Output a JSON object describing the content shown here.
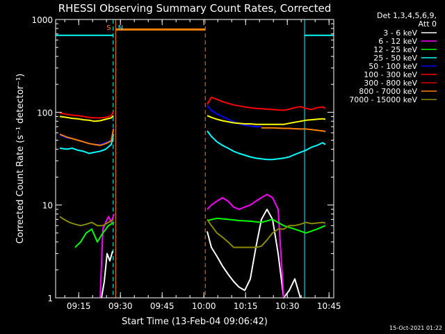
{
  "colors": {
    "background": "#000000",
    "foreground": "#ffffff",
    "attenuator_bar": "#ff7f00",
    "night_bar": "#00ffff"
  },
  "chart_data": {
    "type": "line",
    "title": "RHESSI Observing Summary Count Rates, Corrected",
    "xlabel": "Start Time (13-Feb-04 09:06:42)",
    "ylabel": "Corrected Count Rate (s⁻¹ detector⁻¹)",
    "x_unit": "minutes after 09:06:42",
    "xlim": [
      0,
      100
    ],
    "ylim": [
      1,
      1000
    ],
    "y_scale": "log",
    "x_ticks": [
      {
        "x": 8.3,
        "label": "09:15"
      },
      {
        "x": 23.3,
        "label": "09:30"
      },
      {
        "x": 38.3,
        "label": "09:45"
      },
      {
        "x": 53.3,
        "label": "10:00"
      },
      {
        "x": 68.3,
        "label": "10:15"
      },
      {
        "x": 83.3,
        "label": "10:30"
      },
      {
        "x": 98.3,
        "label": "10:45"
      }
    ],
    "y_ticks": [
      {
        "y": 1,
        "label": "1"
      },
      {
        "y": 10,
        "label": "10"
      },
      {
        "y": 100,
        "label": "100"
      },
      {
        "y": 1000,
        "label": "1000"
      }
    ],
    "legend_header": [
      "Det 1,3,4,5,6,9,",
      "Att 0"
    ],
    "legend_placement": "right",
    "grid": false,
    "series": [
      {
        "name": "3 - 6 keV",
        "color": "#ffffff",
        "segments": [
          {
            "x": [
              16.5,
              17.5,
              18.5,
              19.5,
              20.5
            ],
            "y": [
              1,
              1.5,
              3,
              2.5,
              3.2
            ]
          },
          {
            "x": [
              54.5,
              56,
              58,
              60,
              62,
              64,
              66,
              68,
              70,
              72,
              74,
              76,
              78,
              80,
              82,
              84,
              86,
              88
            ],
            "y": [
              5.2,
              3.5,
              2.8,
              2.2,
              1.8,
              1.5,
              1.3,
              1.2,
              1.6,
              3.5,
              7,
              9,
              7,
              3,
              1,
              1.2,
              1.6,
              1
            ]
          }
        ]
      },
      {
        "name": "6 - 12 keV",
        "color": "#ff00ff",
        "segments": [
          {
            "x": [
              16,
              17,
              18,
              19,
              20,
              21
            ],
            "y": [
              1,
              5.5,
              6.5,
              7.5,
              6.5,
              8
            ]
          },
          {
            "x": [
              54.5,
              56,
              58,
              60,
              62,
              64,
              66,
              68,
              70,
              72,
              74,
              76,
              78,
              80,
              82
            ],
            "y": [
              9,
              10,
              11,
              12,
              11,
              9.5,
              9,
              9.5,
              10,
              11,
              12,
              13,
              12,
              9,
              1
            ]
          }
        ]
      },
      {
        "name": "12 - 25 keV",
        "color": "#00ff00",
        "segments": [
          {
            "x": [
              7,
              9,
              11,
              13,
              15,
              17,
              19,
              21
            ],
            "y": [
              3.5,
              4,
              5,
              5.5,
              4,
              5,
              6,
              6.5
            ]
          },
          {
            "x": [
              54.5,
              58,
              62,
              66,
              70,
              74,
              78,
              82,
              86,
              90,
              94,
              97
            ],
            "y": [
              6.8,
              7.2,
              7,
              6.8,
              6.7,
              6.5,
              7,
              6,
              5.5,
              5,
              5.5,
              6
            ]
          }
        ]
      },
      {
        "name": "25 - 50 keV",
        "color": "#00ffff",
        "segments": [
          {
            "x": [
              1.5,
              4,
              6,
              8,
              10,
              12,
              14,
              16,
              18,
              20,
              20.8
            ],
            "y": [
              41,
              40,
              41,
              39,
              38,
              36,
              37,
              38,
              40,
              45,
              58
            ]
          },
          {
            "x": [
              54.5,
              56,
              58,
              60,
              62,
              64,
              66,
              68,
              70,
              72,
              74,
              76,
              78,
              80,
              82,
              84,
              86,
              88,
              90,
              92,
              94,
              96,
              97
            ],
            "y": [
              63,
              55,
              48,
              44,
              41,
              38,
              36,
              34.5,
              33,
              32,
              31.5,
              31,
              31,
              31.5,
              32,
              33,
              35,
              37,
              39,
              42,
              44,
              47,
              45
            ]
          }
        ]
      },
      {
        "name": "50 - 100 keV",
        "color": "#0000ff",
        "segments": [
          {
            "x": [
              1.5,
              4,
              6,
              8,
              10,
              12,
              14,
              16,
              18,
              20,
              20.8
            ],
            "y": [
              57,
              53,
              52,
              50,
              48,
              46,
              45,
              45,
              47,
              50,
              68
            ]
          },
          {
            "x": [
              54.5,
              56,
              58,
              60,
              62,
              64,
              66,
              68,
              70,
              72,
              74
            ],
            "y": [
              118,
              105,
              96,
              90,
              84,
              79,
              75,
              73,
              71,
              70,
              70
            ]
          }
        ]
      },
      {
        "name": "100 - 300 keV",
        "color": "#ff0000",
        "segments": [
          {
            "x": [
              1.5,
              4,
              6,
              8,
              10,
              12,
              14,
              16,
              18,
              20,
              20.8
            ],
            "y": [
              98,
              95,
              93,
              92,
              90,
              88,
              87,
              87,
              88,
              92,
              102
            ]
          },
          {
            "x": [
              54.5,
              56,
              58,
              60,
              62,
              64,
              66,
              68,
              70,
              72,
              74,
              76,
              78,
              80,
              82,
              84,
              86,
              88,
              90,
              92,
              94,
              96,
              97
            ],
            "y": [
              122,
              145,
              138,
              130,
              125,
              120,
              117,
              114,
              112,
              110,
              109,
              108,
              107,
              106,
              105,
              108,
              112,
              115,
              110,
              107,
              112,
              114,
              110
            ]
          }
        ]
      },
      {
        "name": "300 - 800 keV",
        "color": "#dd0000",
        "segments": []
      },
      {
        "name": "800 - 7000 keV",
        "color": "#ff7f00",
        "segments": [
          {
            "x": [
              1.5,
              4,
              6,
              8,
              10,
              12,
              14,
              16,
              18,
              20,
              20.8
            ],
            "y": [
              58,
              54,
              52,
              50,
              48,
              46,
              45,
              44,
              46,
              49,
              66
            ]
          },
          {
            "x": [
              74,
              76,
              78,
              80,
              82,
              84,
              86,
              88,
              90,
              92,
              94,
              96,
              97
            ],
            "y": [
              68,
              68,
              68,
              67.5,
              67,
              67,
              66.5,
              66,
              66,
              65,
              64,
              63,
              62
            ]
          }
        ]
      },
      {
        "name": "7000 - 15000 keV",
        "color": "#8b8b00",
        "segments": [
          {
            "x": [
              1.5,
              3,
              5,
              7,
              9,
              11,
              13,
              15,
              17,
              19,
              20.8
            ],
            "y": [
              7.5,
              7,
              6.5,
              6.2,
              6,
              6.2,
              6.5,
              6,
              6,
              6.5,
              7
            ]
          },
          {
            "x": [
              54.5,
              56,
              58,
              60,
              62,
              64,
              66,
              68,
              70,
              72,
              74,
              76,
              78,
              80,
              82,
              84,
              86,
              88,
              90,
              92,
              94,
              96,
              97
            ],
            "y": [
              7,
              6,
              5,
              4.5,
              4,
              3.5,
              3.5,
              3.5,
              3.5,
              3.5,
              3.6,
              4.2,
              5,
              5.5,
              5.5,
              6,
              6,
              6.2,
              6.5,
              6.3,
              6.4,
              6.5,
              6.4
            ]
          }
        ]
      },
      {
        "name": "",
        "color": "#ffff00",
        "segments": [
          {
            "x": [
              1.5,
              4,
              6,
              8,
              10,
              12,
              14,
              16,
              18,
              20,
              20.8
            ],
            "y": [
              90,
              88,
              86,
              85,
              83,
              82,
              80,
              81,
              84,
              87,
              92
            ]
          },
          {
            "x": [
              54.5,
              56,
              58,
              60,
              62,
              64,
              66,
              68,
              70,
              72,
              74,
              76,
              78,
              80,
              82,
              84,
              86,
              88,
              90,
              92,
              94,
              96,
              97
            ],
            "y": [
              92,
              88,
              84,
              81,
              79,
              77,
              76,
              75,
              75,
              74,
              74,
              74,
              74,
              74,
              74,
              76,
              78,
              80,
              82,
              83,
              84,
              85,
              84
            ]
          }
        ]
      }
    ],
    "state_bars": [
      {
        "type": "night",
        "color": "#00ffff",
        "x_start": 0,
        "x_end": 20.7,
        "y": 675
      },
      {
        "type": "attenuator",
        "color": "#ff7f00",
        "x_start": 21.6,
        "x_end": 53.8,
        "y": 780
      },
      {
        "type": "night",
        "color": "#00ffff",
        "x_start": 89.5,
        "x_end": 100,
        "y": 675
      }
    ],
    "markers": [
      {
        "label": "S",
        "x": 20.8,
        "color": "#ff7f00"
      },
      {
        "label": "N",
        "x": 22.2,
        "color": "#00ffff"
      }
    ],
    "event_lines": [
      {
        "x": 20.7,
        "color": "#00ffff",
        "style": "dashed"
      },
      {
        "x": 21.6,
        "color": "#ff7f00",
        "style": "solid"
      },
      {
        "x": 53.8,
        "color": "#ff7f00",
        "style": "dashed"
      },
      {
        "x": 89.5,
        "color": "#00ffff",
        "style": "solid"
      },
      {
        "x": 100,
        "color": "#00ffff",
        "style": "dashed"
      }
    ]
  },
  "footer": {
    "timestamp": "15-Oct-2021 01:22"
  }
}
